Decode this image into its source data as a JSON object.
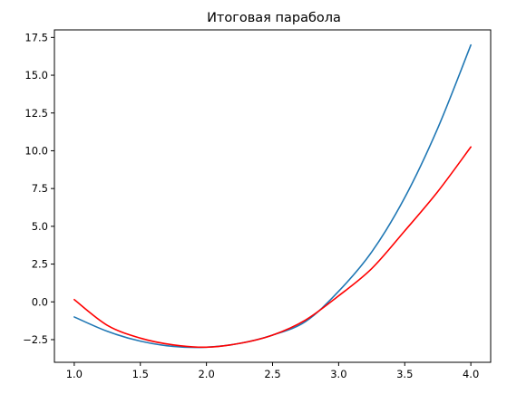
{
  "chart_data": {
    "type": "line",
    "title": "Итоговая парабола",
    "xlabel": "",
    "ylabel": "",
    "xlim": [
      0.85,
      4.15
    ],
    "ylim": [
      -4.0,
      18.0
    ],
    "grid": false,
    "legend": "none",
    "x_ticks": [
      1.0,
      1.5,
      2.0,
      2.5,
      3.0,
      3.5,
      4.0
    ],
    "x_tick_labels": [
      "1.0",
      "1.5",
      "2.0",
      "2.5",
      "3.0",
      "3.5",
      "4.0"
    ],
    "y_ticks": [
      -2.5,
      0.0,
      2.5,
      5.0,
      7.5,
      10.0,
      12.5,
      15.0,
      17.5
    ],
    "y_tick_labels": [
      "−2.5",
      "0.0",
      "2.5",
      "5.0",
      "7.5",
      "10.0",
      "12.5",
      "15.0",
      "17.5"
    ],
    "series": [
      {
        "color": "#1f77b4",
        "x": [
          1.0,
          1.25,
          1.5,
          1.75,
          2.0,
          2.25,
          2.5,
          2.75,
          3.0,
          3.25,
          3.5,
          3.75,
          4.0
        ],
        "y": [
          -1.0,
          -1.95,
          -2.6,
          -2.95,
          -3.0,
          -2.75,
          -2.2,
          -1.3,
          0.7,
          3.3,
          6.9,
          11.5,
          17.0
        ]
      },
      {
        "color": "#ff0000",
        "x": [
          1.0,
          1.25,
          1.5,
          1.75,
          2.0,
          2.25,
          2.5,
          2.75,
          3.0,
          3.25,
          3.5,
          3.75,
          4.0
        ],
        "y": [
          0.15,
          -1.55,
          -2.4,
          -2.85,
          -3.0,
          -2.75,
          -2.2,
          -1.2,
          0.4,
          2.2,
          4.7,
          7.3,
          10.25
        ]
      }
    ]
  }
}
